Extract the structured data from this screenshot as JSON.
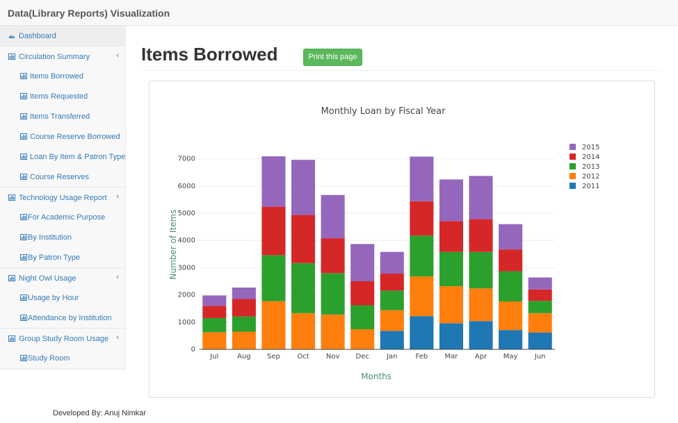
{
  "app": {
    "title": "Data(Library Reports) Visualization"
  },
  "sidebar": {
    "items": [
      {
        "label": "Dashboard",
        "level": 1,
        "icon": "dashboard-icon",
        "active": true
      },
      {
        "label": "Circulation Summary",
        "level": 1,
        "icon": "bar-chart-icon",
        "expandable": true
      },
      {
        "label": "Items Borrowed",
        "level": 2,
        "icon": "bar-chart-icon"
      },
      {
        "label": "Items Requested",
        "level": 2,
        "icon": "bar-chart-icon"
      },
      {
        "label": "Items Transferred",
        "level": 2,
        "icon": "bar-chart-icon"
      },
      {
        "label": "Course Reserve Borrowed",
        "level": 2,
        "icon": "bar-chart-icon"
      },
      {
        "label": "Loan By Item & Patron Type",
        "level": 2,
        "icon": "bar-chart-icon"
      },
      {
        "label": "Course Reserves",
        "level": 2,
        "icon": "bar-chart-icon"
      },
      {
        "label": "Technology Usage Report",
        "level": 1,
        "icon": "bar-chart-icon",
        "expandable": true
      },
      {
        "label": "For Academic Purpose",
        "level": 2,
        "icon": "bar-chart-icon"
      },
      {
        "label": "By Institution",
        "level": 2,
        "icon": "bar-chart-icon"
      },
      {
        "label": "By Patron Type",
        "level": 2,
        "icon": "bar-chart-icon"
      },
      {
        "label": "Night Owl Usage",
        "level": 1,
        "icon": "bar-chart-icon",
        "expandable": true
      },
      {
        "label": "Usage by Hour",
        "level": 2,
        "icon": "bar-chart-icon"
      },
      {
        "label": "Attendance by Institution",
        "level": 2,
        "icon": "bar-chart-icon"
      },
      {
        "label": "Group Study Room Usage",
        "level": 1,
        "icon": "bar-chart-icon",
        "expandable": true
      },
      {
        "label": "Study Room",
        "level": 2,
        "icon": "bar-chart-icon"
      }
    ],
    "chevron_glyph": "‹"
  },
  "main": {
    "title": "Items Borrowed",
    "print_label": "Print this page"
  },
  "footer": {
    "text": "Developed By: Anuj Nimkar"
  },
  "colors": {
    "link": "#337ab7",
    "print_button": "#5cb85c",
    "axis_label": "#4a8c6f"
  },
  "chart_data": {
    "type": "bar",
    "stacked": true,
    "title": "Monthly Loan by Fiscal Year",
    "xlabel": "Months",
    "ylabel": "Number of Items",
    "ylim": [
      0,
      7500
    ],
    "yticks": [
      0,
      1000,
      2000,
      3000,
      4000,
      5000,
      6000,
      7000
    ],
    "grid": true,
    "legend_position": "top-right",
    "categories": [
      "Jul",
      "Aug",
      "Sep",
      "Oct",
      "Nov",
      "Dec",
      "Jan",
      "Feb",
      "Mar",
      "Apr",
      "May",
      "Jun"
    ],
    "series": [
      {
        "name": "2011",
        "color": "#1f77b4",
        "values": [
          0,
          0,
          0,
          0,
          0,
          0,
          680,
          1220,
          960,
          1040,
          710,
          620
        ]
      },
      {
        "name": "2012",
        "color": "#ff7f0e",
        "values": [
          630,
          650,
          1770,
          1330,
          1280,
          740,
          760,
          1460,
          1360,
          1200,
          1050,
          710
        ]
      },
      {
        "name": "2013",
        "color": "#2ca02c",
        "values": [
          520,
          560,
          1690,
          1840,
          1520,
          880,
          720,
          1500,
          1260,
          1340,
          1110,
          450
        ]
      },
      {
        "name": "2014",
        "color": "#d62728",
        "values": [
          450,
          640,
          1780,
          1770,
          1280,
          880,
          620,
          1260,
          1130,
          1200,
          800,
          420
        ]
      },
      {
        "name": "2015",
        "color": "#9467bd",
        "values": [
          380,
          420,
          1850,
          2020,
          1590,
          1370,
          800,
          1640,
          1530,
          1590,
          930,
          440
        ]
      }
    ]
  }
}
